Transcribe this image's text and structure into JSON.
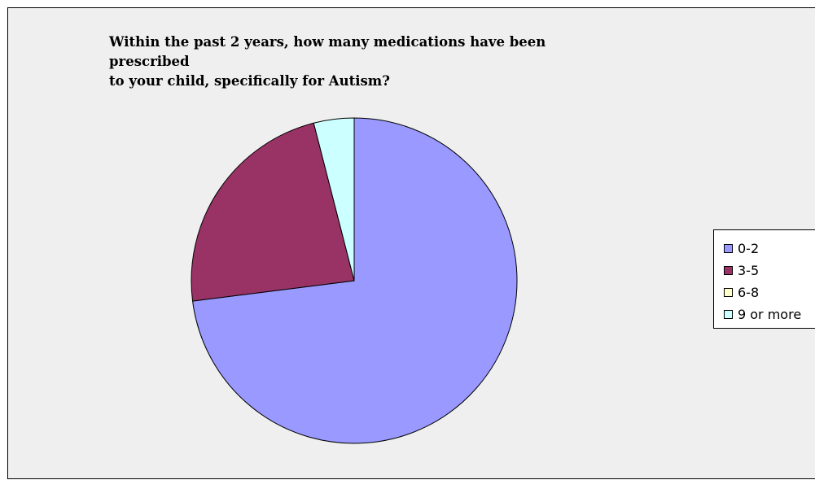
{
  "chart_data": {
    "type": "pie",
    "title": "Within the past 2 years, how many medications have been prescribed to your child, specifically for Autism?",
    "title_lines": [
      "Within the past 2 years, how many medications have been prescribed",
      "to your child, specifically for Autism?"
    ],
    "categories": [
      "0-2",
      "3-5",
      "6-8",
      "9 or more"
    ],
    "values": [
      73,
      23,
      0,
      4
    ],
    "colors": [
      "#9999ff",
      "#993366",
      "#ffffcc",
      "#ccffff"
    ],
    "start_angle_deg": 0,
    "direction": "clockwise",
    "legend": "right"
  }
}
